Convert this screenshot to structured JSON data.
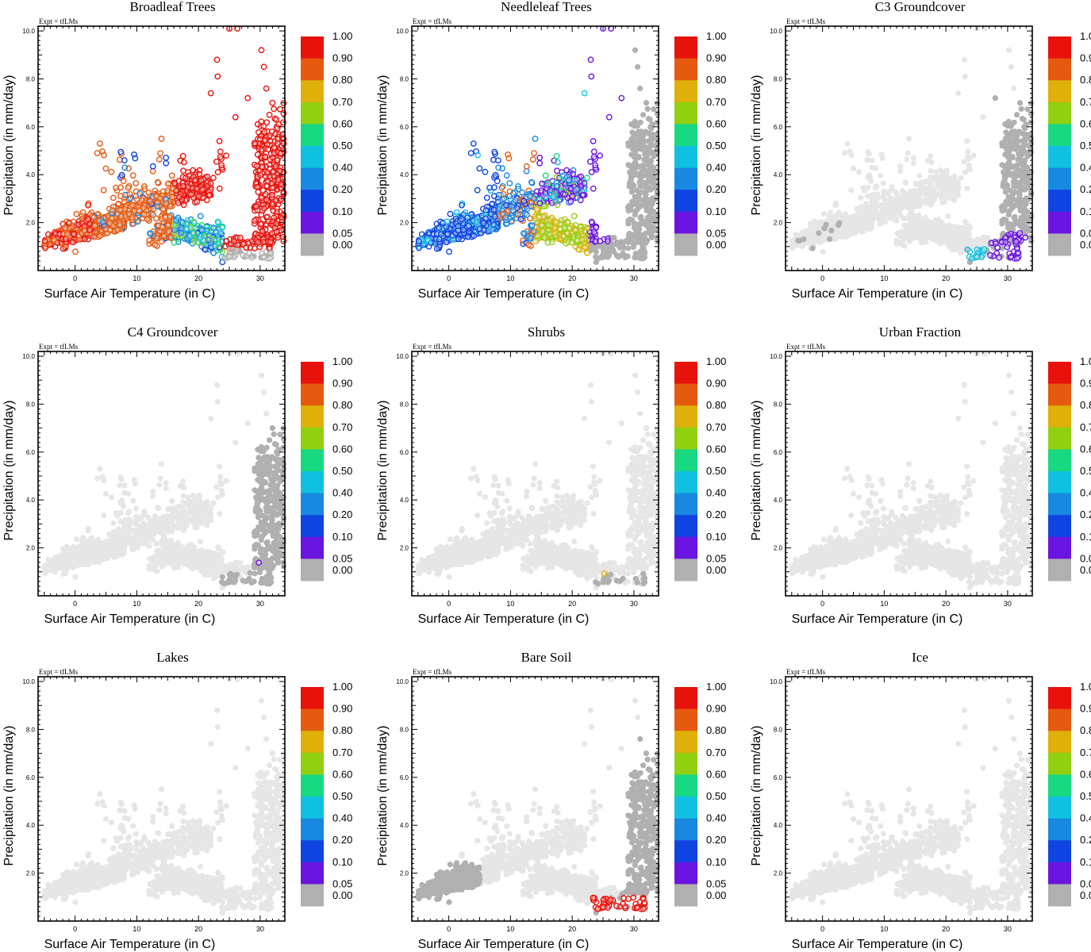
{
  "chart_data": {
    "type": "scatter",
    "layout": "3x3 panel grid",
    "expt_label": "Expt = tfLMs",
    "xlabel": "Surface Air Temperature (in C)",
    "ylabel": "Precipitation (in mm/day)",
    "xlim": [
      -6,
      34
    ],
    "ylim": [
      0,
      10.2
    ],
    "xticks": [
      0,
      10,
      20,
      30
    ],
    "yticks": [
      2.0,
      4.0,
      6.0,
      8.0,
      10.0
    ],
    "colorbar": {
      "labels": [
        "1.00",
        "0.90",
        "0.80",
        "0.70",
        "0.60",
        "0.50",
        "0.40",
        "0.20",
        "0.10",
        "0.05",
        "0.00"
      ],
      "colors": [
        "#e8120c",
        "#e55a10",
        "#e0b00a",
        "#90d010",
        "#18d882",
        "#10c0e0",
        "#1888e0",
        "#1044e0",
        "#6a14e0",
        "#b0b0b0"
      ],
      "thresholds": [
        0.05,
        0.1,
        0.2,
        0.4,
        0.5,
        0.6,
        0.7,
        0.8,
        0.9
      ]
    },
    "point_style": {
      "background_color": "#e6e6e6",
      "zero_color": "#b0b0b0"
    },
    "panels": [
      {
        "title": "Broadleaf Trees",
        "fraction_key": "broadleaf"
      },
      {
        "title": "Needleleaf Trees",
        "fraction_key": "needleleaf"
      },
      {
        "title": "C3 Groundcover",
        "fraction_key": "c3"
      },
      {
        "title": "C4 Groundcover",
        "fraction_key": "c4"
      },
      {
        "title": "Shrubs",
        "fraction_key": "shrubs"
      },
      {
        "title": "Urban Fraction",
        "fraction_key": "urban"
      },
      {
        "title": "Lakes",
        "fraction_key": "lakes"
      },
      {
        "title": "Bare Soil",
        "fraction_key": "baresoil"
      },
      {
        "title": "Ice",
        "fraction_key": "ice"
      }
    ]
  }
}
